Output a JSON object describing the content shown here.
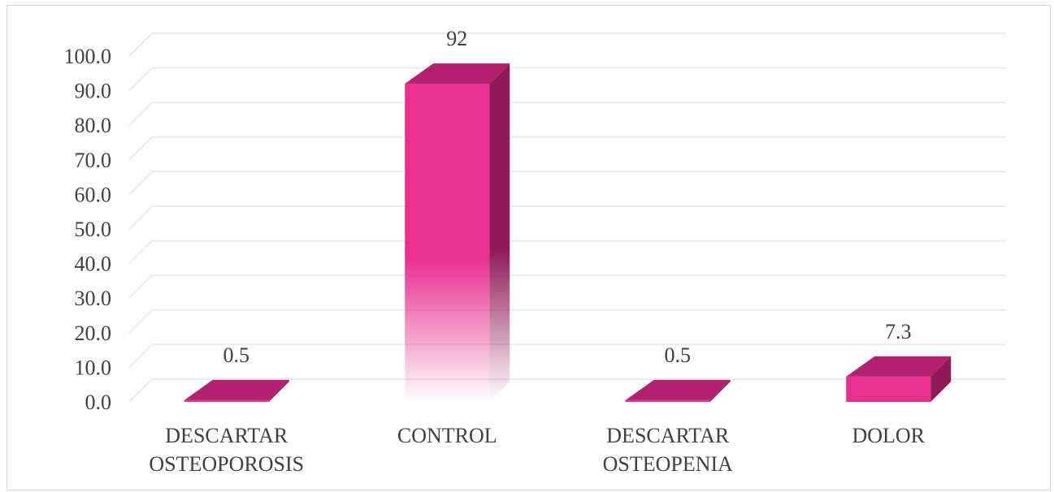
{
  "chart_data": {
    "type": "bar",
    "style": "3d-column",
    "categories": [
      [
        "DESCARTAR",
        "OSTEOPOROSIS"
      ],
      [
        "CONTROL"
      ],
      [
        "DESCARTAR",
        "OSTEOPENIA"
      ],
      [
        "DOLOR"
      ]
    ],
    "values": [
      0.5,
      92,
      0.5,
      7.3
    ],
    "data_labels": [
      "0.5",
      "92",
      "0.5",
      "7.3"
    ],
    "yticks": [
      "0.0",
      "10.0",
      "20.0",
      "30.0",
      "40.0",
      "50.0",
      "60.0",
      "70.0",
      "80.0",
      "90.0",
      "100.0"
    ],
    "ylim": [
      0,
      100
    ],
    "grid": true,
    "legend": false,
    "colors": {
      "front": "#e8308f",
      "top": "#b3216f",
      "side": "#8f1a58",
      "grid": "#ececec",
      "text": "#404040"
    }
  }
}
